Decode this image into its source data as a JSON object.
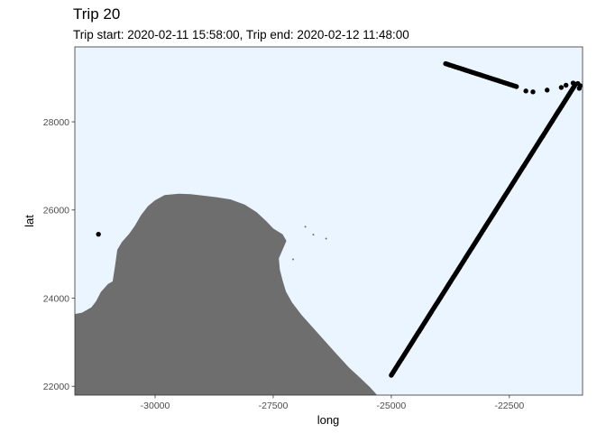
{
  "colors": {
    "panel_background": "#ebf5ff",
    "panel_border": "#333333",
    "land": "#6e6e6e",
    "points": "#000000",
    "tick_text": "#4d4d4d"
  },
  "chart_data": {
    "type": "scatter",
    "title": "Trip 20",
    "subtitle": "Trip start: 2020-02-11 15:58:00, Trip end: 2020-02-12 11:48:00",
    "xlabel": "long",
    "ylabel": "lat",
    "xlim": [
      -31700,
      -20950
    ],
    "ylim": [
      21800,
      29700
    ],
    "grid": false,
    "xticks": [
      -30000,
      -27500,
      -25000,
      -22500
    ],
    "xtick_labels": [
      "-30000",
      "-27500",
      "-25000",
      "-22500"
    ],
    "yticks": [
      22000,
      24000,
      26000,
      28000
    ],
    "ytick_labels": [
      "22000",
      "24000",
      "26000",
      "28000"
    ],
    "track": {
      "dense_segments": [
        {
          "from": [
            -25000,
            22250
          ],
          "to": [
            -21100,
            28850
          ]
        },
        {
          "from": [
            -23850,
            29320
          ],
          "to": [
            -22350,
            28800
          ]
        }
      ],
      "scattered_points": [
        [
          -31200,
          25450
        ],
        [
          -22150,
          28700
        ],
        [
          -22000,
          28680
        ],
        [
          -21700,
          28720
        ],
        [
          -21400,
          28780
        ],
        [
          -21300,
          28830
        ],
        [
          -21150,
          28880
        ],
        [
          -21050,
          28870
        ],
        [
          -21000,
          28820
        ],
        [
          -21020,
          28760
        ]
      ]
    },
    "land": {
      "mainland": [
        [
          -31700,
          23640
        ],
        [
          -31550,
          23670
        ],
        [
          -31350,
          23790
        ],
        [
          -31250,
          23930
        ],
        [
          -31150,
          24140
        ],
        [
          -31000,
          24320
        ],
        [
          -30900,
          24380
        ],
        [
          -30850,
          24720
        ],
        [
          -30800,
          25100
        ],
        [
          -30700,
          25280
        ],
        [
          -30550,
          25460
        ],
        [
          -30430,
          25640
        ],
        [
          -30300,
          25880
        ],
        [
          -30150,
          26090
        ],
        [
          -30000,
          26220
        ],
        [
          -29800,
          26340
        ],
        [
          -29500,
          26370
        ],
        [
          -29250,
          26360
        ],
        [
          -29000,
          26330
        ],
        [
          -28700,
          26290
        ],
        [
          -28400,
          26240
        ],
        [
          -28100,
          26120
        ],
        [
          -27850,
          25950
        ],
        [
          -27650,
          25750
        ],
        [
          -27500,
          25580
        ],
        [
          -27300,
          25450
        ],
        [
          -27220,
          25300
        ],
        [
          -27300,
          25100
        ],
        [
          -27380,
          24900
        ],
        [
          -27360,
          24650
        ],
        [
          -27300,
          24400
        ],
        [
          -27230,
          24150
        ],
        [
          -27100,
          23900
        ],
        [
          -26900,
          23620
        ],
        [
          -26650,
          23320
        ],
        [
          -26400,
          23020
        ],
        [
          -26150,
          22720
        ],
        [
          -25900,
          22430
        ],
        [
          -25650,
          22180
        ],
        [
          -25450,
          21980
        ],
        [
          -25300,
          21800
        ],
        [
          -31700,
          21800
        ]
      ],
      "islets": [
        [
          -26820,
          25620
        ],
        [
          -26650,
          25440
        ],
        [
          -26380,
          25350
        ],
        [
          -27080,
          24880
        ]
      ]
    }
  }
}
